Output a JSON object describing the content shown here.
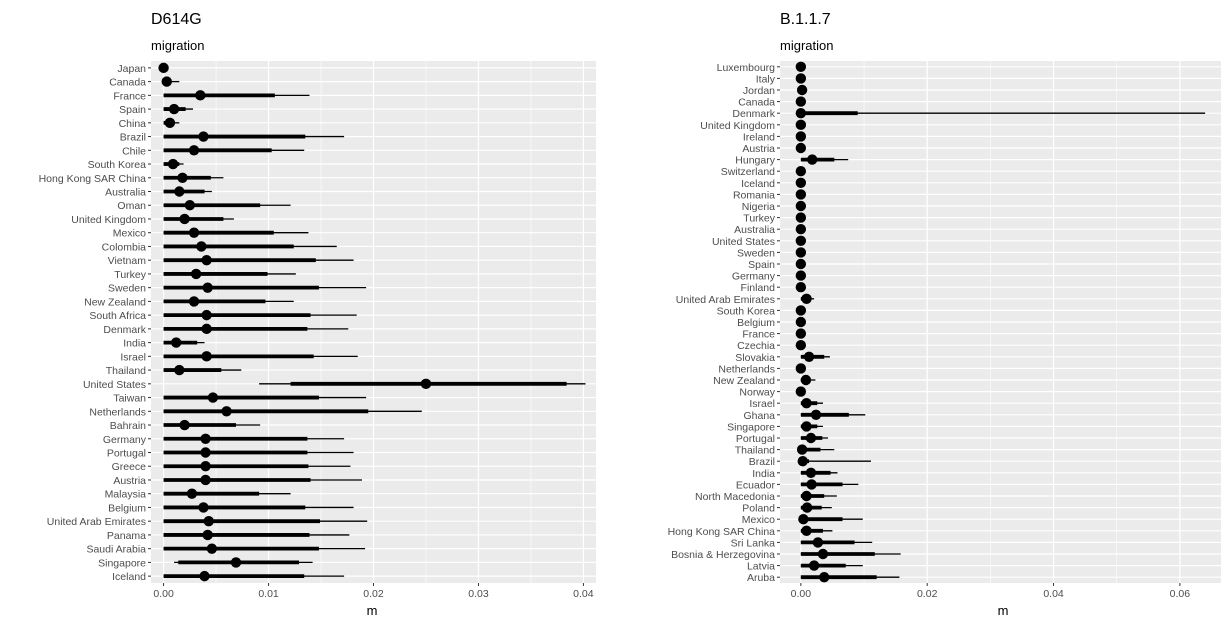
{
  "chart_data": [
    {
      "type": "forest",
      "title": "D614G",
      "subtitle": "migration",
      "xlabel": "m",
      "xlim": [
        -0.0012,
        0.0412
      ],
      "xticks": [
        0.0,
        0.01,
        0.02,
        0.03,
        0.04
      ],
      "xtick_labels": [
        "0.00",
        "0.01",
        "0.02",
        "0.03",
        "0.04"
      ],
      "grid": true,
      "colors": {
        "panel": "#ebebeb",
        "grid": "#ffffff",
        "marks": "#000000"
      },
      "categories": [
        "Japan",
        "Canada",
        "France",
        "Spain",
        "China",
        "Brazil",
        "Chile",
        "South Korea",
        "Hong Kong SAR China",
        "Australia",
        "Oman",
        "United Kingdom",
        "Mexico",
        "Colombia",
        "Vietnam",
        "Turkey",
        "Sweden",
        "New Zealand",
        "South Africa",
        "Denmark",
        "India",
        "Israel",
        "Thailand",
        "United States",
        "Taiwan",
        "Netherlands",
        "Bahrain",
        "Germany",
        "Portugal",
        "Greece",
        "Austria",
        "Malaysia",
        "Belgium",
        "United Arab Emirates",
        "Panama",
        "Saudi Arabia",
        "Singapore",
        "Iceland"
      ],
      "estimate": [
        0.0,
        0.0003,
        0.0035,
        0.001,
        0.0006,
        0.0038,
        0.0029,
        0.0009,
        0.0018,
        0.0015,
        0.0025,
        0.002,
        0.0029,
        0.0036,
        0.0041,
        0.0031,
        0.0042,
        0.0029,
        0.0041,
        0.0041,
        0.0012,
        0.0041,
        0.0015,
        0.025,
        0.0047,
        0.006,
        0.002,
        0.004,
        0.004,
        0.004,
        0.004,
        0.0027,
        0.0038,
        0.0043,
        0.0042,
        0.0046,
        0.0069,
        0.0039
      ],
      "inner_low": [
        0.0,
        0.0,
        0.0,
        0.0,
        0.0,
        0.0,
        0.0,
        0.0,
        0.0,
        0.0,
        0.0,
        0.0,
        0.0,
        0.0,
        0.0,
        0.0,
        0.0,
        0.0,
        0.0,
        0.0,
        0.0,
        0.0,
        0.0,
        0.0121,
        0.0,
        0.0,
        0.0,
        0.0,
        0.0,
        0.0,
        0.0,
        0.0,
        0.0,
        0.0,
        0.0,
        0.0,
        0.0014,
        0.0
      ],
      "inner_high": [
        0.0,
        0.0007,
        0.0106,
        0.0021,
        0.001,
        0.0135,
        0.0103,
        0.0015,
        0.0045,
        0.0039,
        0.0092,
        0.0057,
        0.0105,
        0.0124,
        0.0145,
        0.0099,
        0.0148,
        0.0097,
        0.014,
        0.0137,
        0.0032,
        0.0143,
        0.0055,
        0.0384,
        0.0148,
        0.0195,
        0.0069,
        0.0137,
        0.0137,
        0.0138,
        0.014,
        0.0091,
        0.0135,
        0.0149,
        0.0139,
        0.0148,
        0.0129,
        0.0134
      ],
      "outer_low": [
        0.0,
        0.0,
        0.0,
        0.0,
        0.0,
        0.0,
        0.0,
        0.0,
        0.0,
        0.0,
        0.0,
        0.0,
        0.0,
        0.0,
        0.0,
        0.0,
        0.0,
        0.0,
        0.0,
        0.0,
        0.0,
        0.0,
        0.0,
        0.0091,
        0.0,
        0.0,
        0.0,
        0.0,
        0.0,
        0.0,
        0.0,
        0.0,
        0.0,
        0.0,
        0.0,
        0.0,
        0.001,
        0.0
      ],
      "outer_high": [
        0.0,
        0.0015,
        0.0139,
        0.0028,
        0.0015,
        0.0172,
        0.0134,
        0.0019,
        0.0057,
        0.0046,
        0.0121,
        0.0067,
        0.0138,
        0.0165,
        0.0181,
        0.0126,
        0.0193,
        0.0124,
        0.0184,
        0.0176,
        0.0039,
        0.0185,
        0.0074,
        0.0402,
        0.0193,
        0.0246,
        0.0092,
        0.0172,
        0.0181,
        0.0178,
        0.0189,
        0.0121,
        0.0181,
        0.0194,
        0.0177,
        0.0192,
        0.0142,
        0.0172
      ]
    },
    {
      "type": "forest",
      "title": "B.1.1.7",
      "subtitle": "migration",
      "xlabel": "m",
      "xlim": [
        -0.0033,
        0.0673
      ],
      "xticks": [
        0.0,
        0.02,
        0.04,
        0.06
      ],
      "xtick_labels": [
        "0.00",
        "0.02",
        "0.04",
        "0.06"
      ],
      "grid": true,
      "colors": {
        "panel": "#ebebeb",
        "grid": "#ffffff",
        "marks": "#000000"
      },
      "categories": [
        "Luxembourg",
        "Italy",
        "Jordan",
        "Canada",
        "Denmark",
        "United Kingdom",
        "Ireland",
        "Austria",
        "Hungary",
        "Switzerland",
        "Iceland",
        "Romania",
        "Nigeria",
        "Turkey",
        "Australia",
        "United States",
        "Sweden",
        "Spain",
        "Germany",
        "Finland",
        "United Arab Emirates",
        "South Korea",
        "Belgium",
        "France",
        "Czechia",
        "Slovakia",
        "Netherlands",
        "New Zealand",
        "Norway",
        "Israel",
        "Ghana",
        "Singapore",
        "Portugal",
        "Thailand",
        "Brazil",
        "India",
        "Ecuador",
        "North Macedonia",
        "Poland",
        "Mexico",
        "Hong Kong SAR China",
        "Sri Lanka",
        "Bosnia & Herzegovina",
        "Latvia",
        "Aruba"
      ],
      "estimate": [
        0.0,
        0.0,
        0.0002,
        0.0,
        0.0,
        0.0,
        0.0,
        0.0,
        0.0018,
        0.0,
        0.0,
        0.0,
        0.0,
        0.0,
        0.0,
        0.0,
        0.0,
        0.0,
        0.0,
        0.0,
        0.0009,
        0.0,
        0.0,
        0.0,
        0.0,
        0.0013,
        0.0,
        0.0008,
        0.0,
        0.0009,
        0.0024,
        0.0009,
        0.0016,
        0.0002,
        0.0003,
        0.0016,
        0.0017,
        0.0009,
        0.001,
        0.0004,
        0.0009,
        0.0027,
        0.0035,
        0.0021,
        0.0037
      ],
      "inner_low": [
        0.0,
        0.0,
        0.0,
        0.0,
        0.0,
        0.0,
        0.0,
        0.0,
        0.0,
        0.0,
        0.0,
        0.0,
        0.0,
        0.0,
        0.0,
        0.0,
        0.0,
        0.0,
        0.0,
        0.0,
        0.0,
        0.0,
        0.0,
        0.0,
        0.0,
        0.0,
        0.0,
        0.0,
        0.0,
        0.0,
        0.0,
        0.0,
        0.0,
        0.0,
        0.0,
        0.0,
        0.0,
        0.0,
        0.0,
        0.0,
        0.0,
        0.0,
        0.0,
        0.0,
        0.0
      ],
      "inner_high": [
        0.0,
        0.0,
        0.0,
        0.0,
        0.009,
        0.0,
        0.0,
        0.0,
        0.0053,
        0.0,
        0.0,
        0.0,
        0.0,
        0.0,
        0.0,
        0.0,
        0.0,
        0.0,
        0.0,
        0.0,
        0.0012,
        0.0,
        0.0,
        0.0,
        0.0,
        0.0037,
        0.0,
        0.0014,
        0.0,
        0.0026,
        0.0076,
        0.0026,
        0.0034,
        0.0031,
        0.0013,
        0.0047,
        0.0066,
        0.0037,
        0.0033,
        0.0066,
        0.0035,
        0.0085,
        0.0117,
        0.0071,
        0.012
      ],
      "outer_low": [
        0.0,
        0.0,
        0.0,
        0.0,
        0.0,
        0.0,
        0.0,
        0.0,
        0.0,
        0.0,
        0.0,
        0.0,
        0.0,
        0.0,
        0.0,
        0.0,
        0.0,
        0.0,
        0.0,
        0.0,
        0.0,
        0.0,
        0.0,
        0.0,
        0.0,
        0.0,
        0.0,
        0.0,
        0.0,
        0.0,
        0.0,
        0.0,
        0.0,
        0.0,
        0.0,
        0.0,
        0.0,
        0.0,
        0.0,
        0.0,
        0.0,
        0.0,
        0.0,
        0.0,
        0.0
      ],
      "outer_high": [
        0.0,
        0.0,
        0.0,
        0.0,
        0.064,
        0.0,
        0.0,
        0.0,
        0.0075,
        0.0,
        0.0,
        0.0,
        0.0,
        0.0,
        0.0,
        0.0,
        0.0,
        0.0,
        0.0,
        0.0,
        0.0021,
        0.0,
        0.0,
        0.0,
        0.0,
        0.0046,
        0.0,
        0.0023,
        0.0,
        0.0035,
        0.0102,
        0.0035,
        0.0043,
        0.0053,
        0.0111,
        0.0058,
        0.0091,
        0.0057,
        0.0049,
        0.0098,
        0.005,
        0.0113,
        0.0158,
        0.0098,
        0.0156
      ]
    }
  ]
}
